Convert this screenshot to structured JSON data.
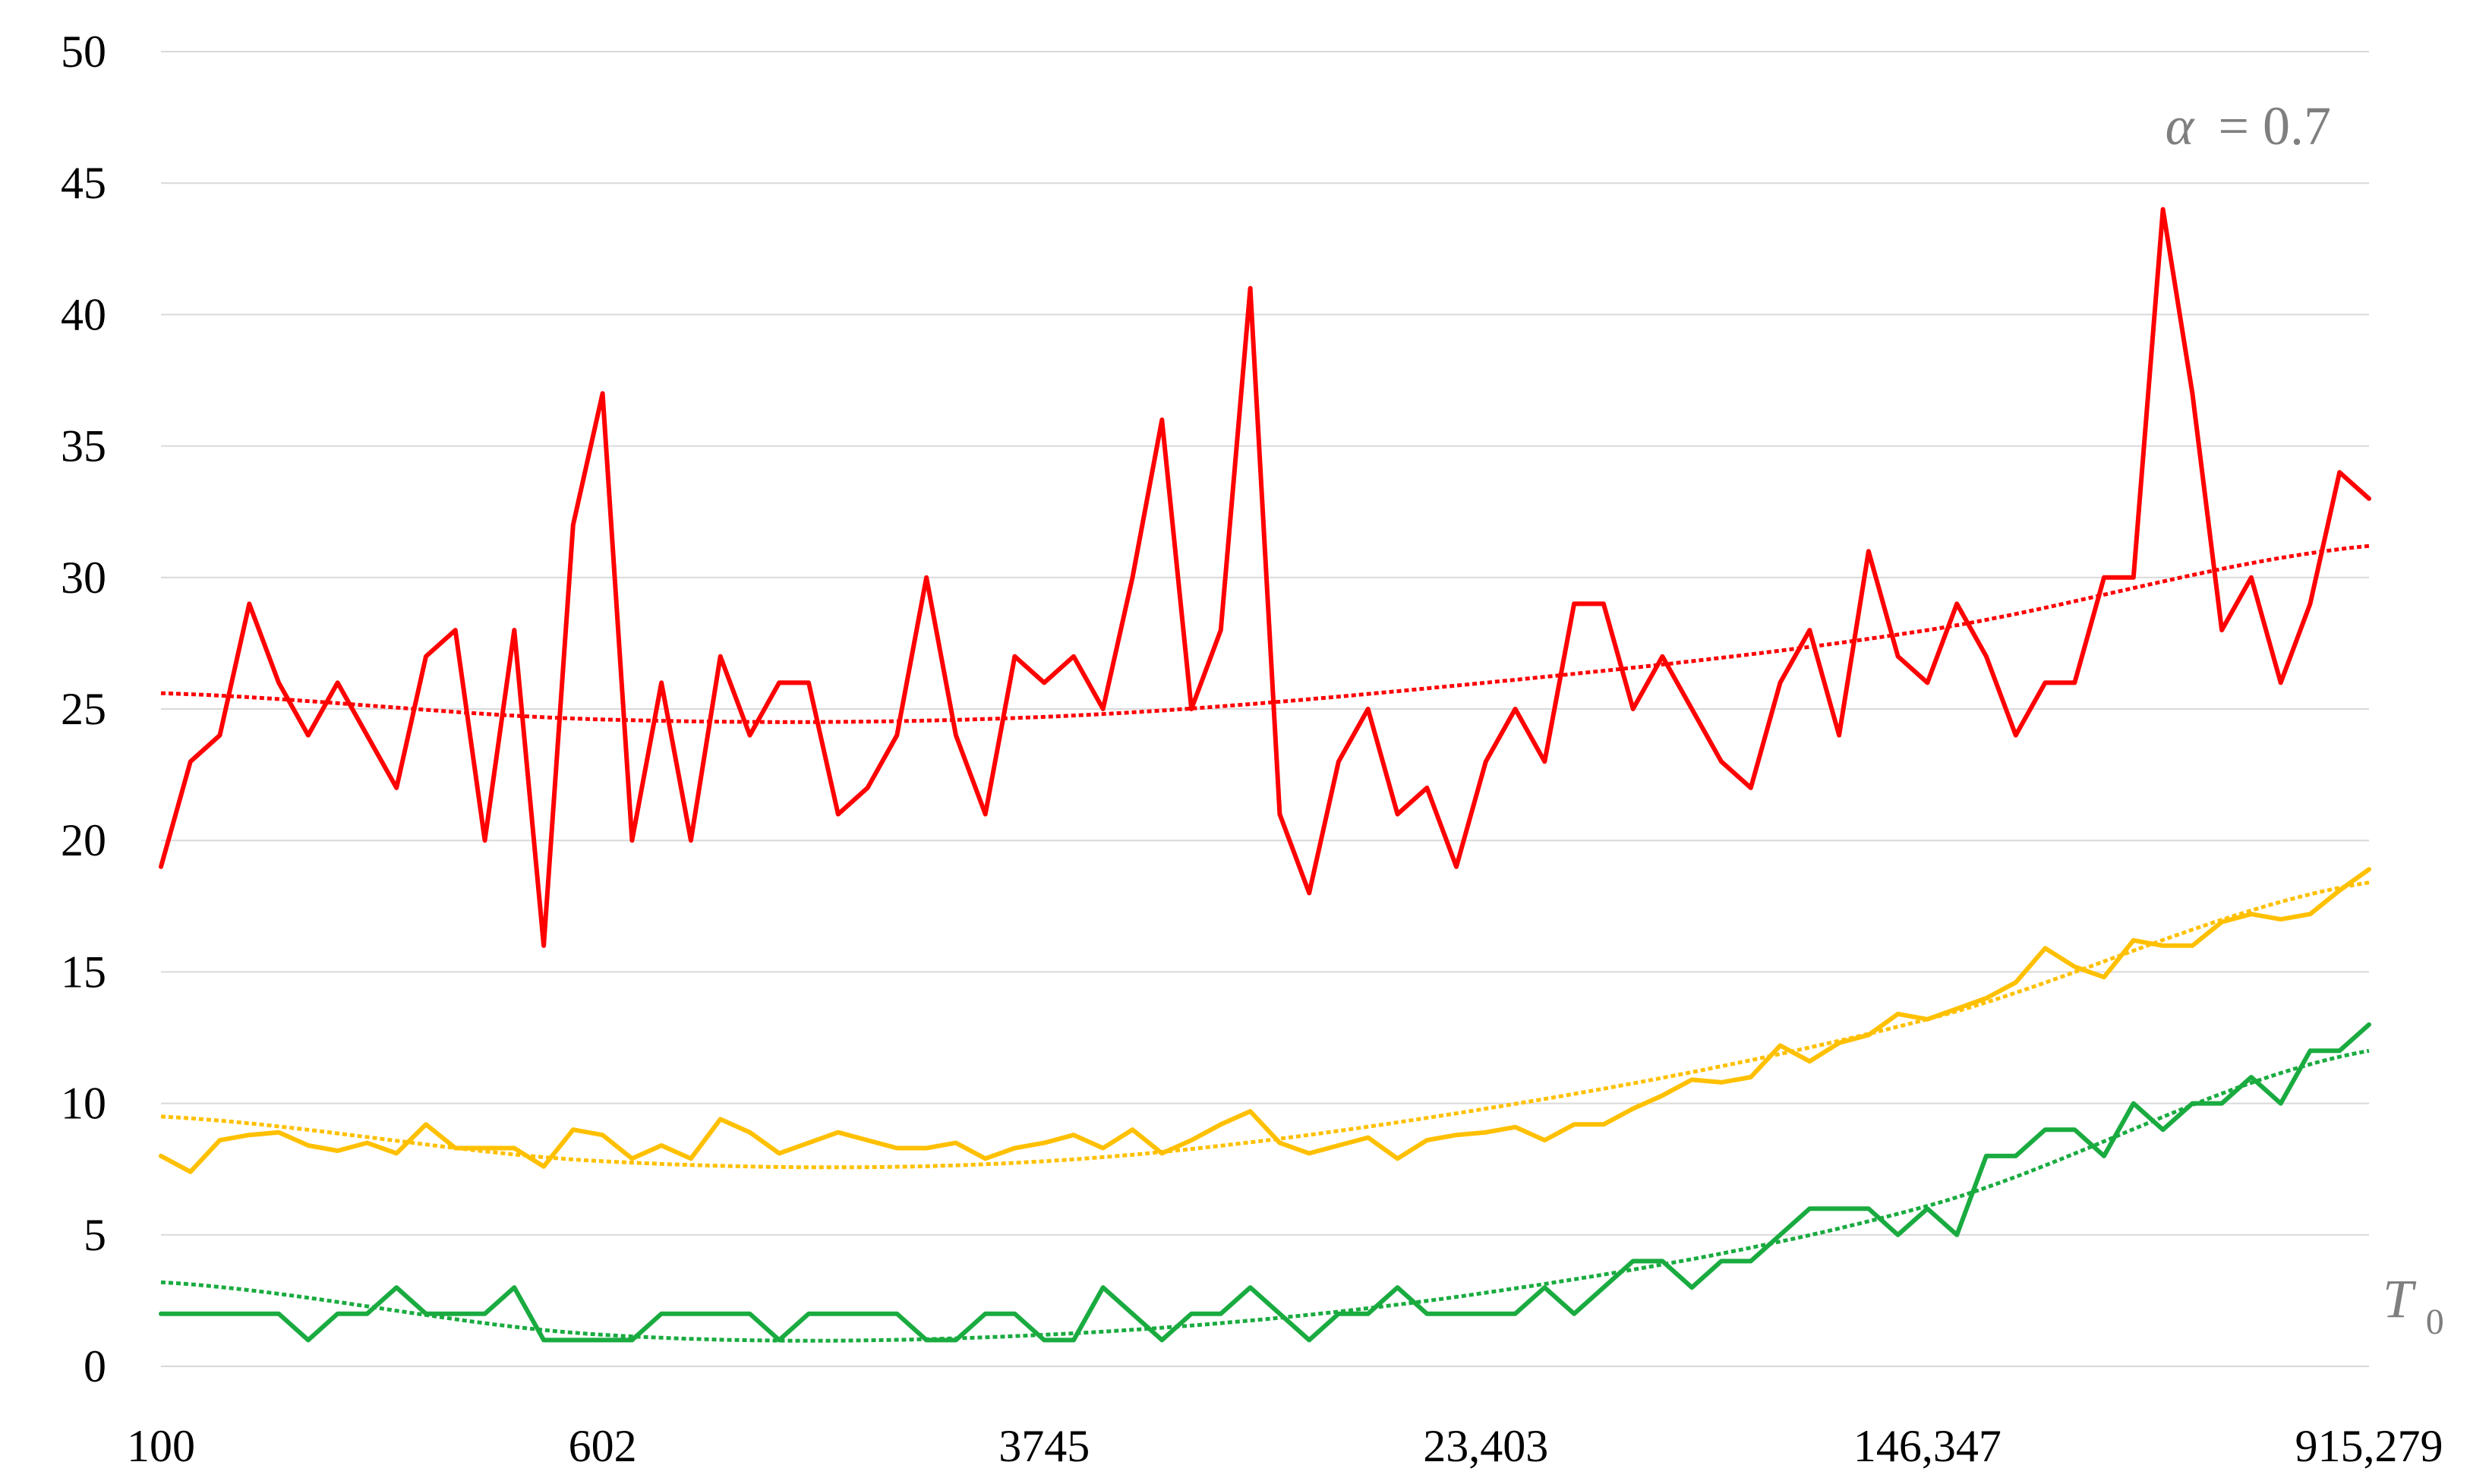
{
  "chart_data": {
    "type": "line",
    "title": "",
    "xlabel": "",
    "ylabel": "",
    "x_tick_labels": [
      "100",
      "602",
      "3745",
      "23,403",
      "146,347",
      "915,279"
    ],
    "y_ticks": [
      0,
      5,
      10,
      15,
      20,
      25,
      30,
      35,
      40,
      45,
      50
    ],
    "ylim": [
      0,
      50
    ],
    "grid": true,
    "legend": "none",
    "annotations": {
      "alpha_symbol": "α",
      "alpha_value": "= 0.7",
      "t_symbol": "T",
      "t_sub": "0"
    },
    "series": [
      {
        "color": "#ff0000",
        "trend_color": "#ff0000",
        "values": [
          19,
          23,
          24,
          29,
          26,
          24,
          26,
          24,
          22,
          27,
          28,
          20,
          28,
          16,
          32,
          37,
          20,
          26,
          20,
          27,
          24,
          26,
          26,
          21,
          22,
          24,
          30,
          24,
          21,
          27,
          26,
          27,
          25,
          30,
          36,
          25,
          28,
          41,
          21,
          18,
          23,
          25,
          21,
          22,
          19,
          23,
          25,
          23,
          29,
          29,
          25,
          27,
          25,
          23,
          22,
          26,
          28,
          24,
          31,
          27,
          26,
          29,
          27,
          24,
          26,
          26,
          30,
          30,
          44,
          37,
          28,
          30,
          26,
          29,
          34,
          33
        ],
        "trend": [
          25.6,
          24.6,
          24.7,
          26.0,
          28.0,
          31.2
        ]
      },
      {
        "color": "#ffc000",
        "trend_color": "#ffc000",
        "values": [
          8,
          7.4,
          8.6,
          8.8,
          8.9,
          8.4,
          8.2,
          8.5,
          8.1,
          9.2,
          8.3,
          8.3,
          8.3,
          7.6,
          9,
          8.8,
          7.9,
          8.4,
          7.9,
          9.4,
          8.9,
          8.1,
          8.5,
          8.9,
          8.6,
          8.3,
          8.3,
          8.5,
          7.9,
          8.3,
          8.5,
          8.8,
          8.3,
          9,
          8.1,
          8.6,
          9.2,
          9.7,
          8.5,
          8.1,
          8.4,
          8.7,
          7.9,
          8.6,
          8.8,
          8.9,
          9.1,
          8.6,
          9.2,
          9.2,
          9.8,
          10.3,
          10.9,
          10.8,
          11,
          12.2,
          11.6,
          12.3,
          12.6,
          13.4,
          13.2,
          13.6,
          14,
          14.6,
          15.9,
          15.2,
          14.8,
          16.2,
          16,
          16,
          16.9,
          17.2,
          17,
          17.2,
          18.1,
          18.9
        ],
        "trend": [
          9.5,
          7.8,
          7.8,
          9.8,
          13.2,
          18.4
        ]
      },
      {
        "color": "#1aab40",
        "trend_color": "#1aab40",
        "values": [
          2,
          2,
          2,
          2,
          2,
          1,
          2,
          2,
          3,
          2,
          2,
          2,
          3,
          1,
          1,
          1,
          1,
          2,
          2,
          2,
          2,
          1,
          2,
          2,
          2,
          2,
          1,
          1,
          2,
          2,
          1,
          1,
          3,
          2,
          1,
          2,
          2,
          3,
          2,
          1,
          2,
          2,
          3,
          2,
          2,
          2,
          2,
          3,
          2,
          3,
          4,
          4,
          3,
          4,
          4,
          5,
          6,
          6,
          6,
          5,
          6,
          5,
          8,
          8,
          9,
          9,
          8,
          10,
          9,
          10,
          10,
          11,
          10,
          12,
          12,
          13
        ],
        "trend": [
          3.2,
          1.2,
          1.2,
          2.8,
          6.1,
          12.0
        ]
      }
    ]
  }
}
